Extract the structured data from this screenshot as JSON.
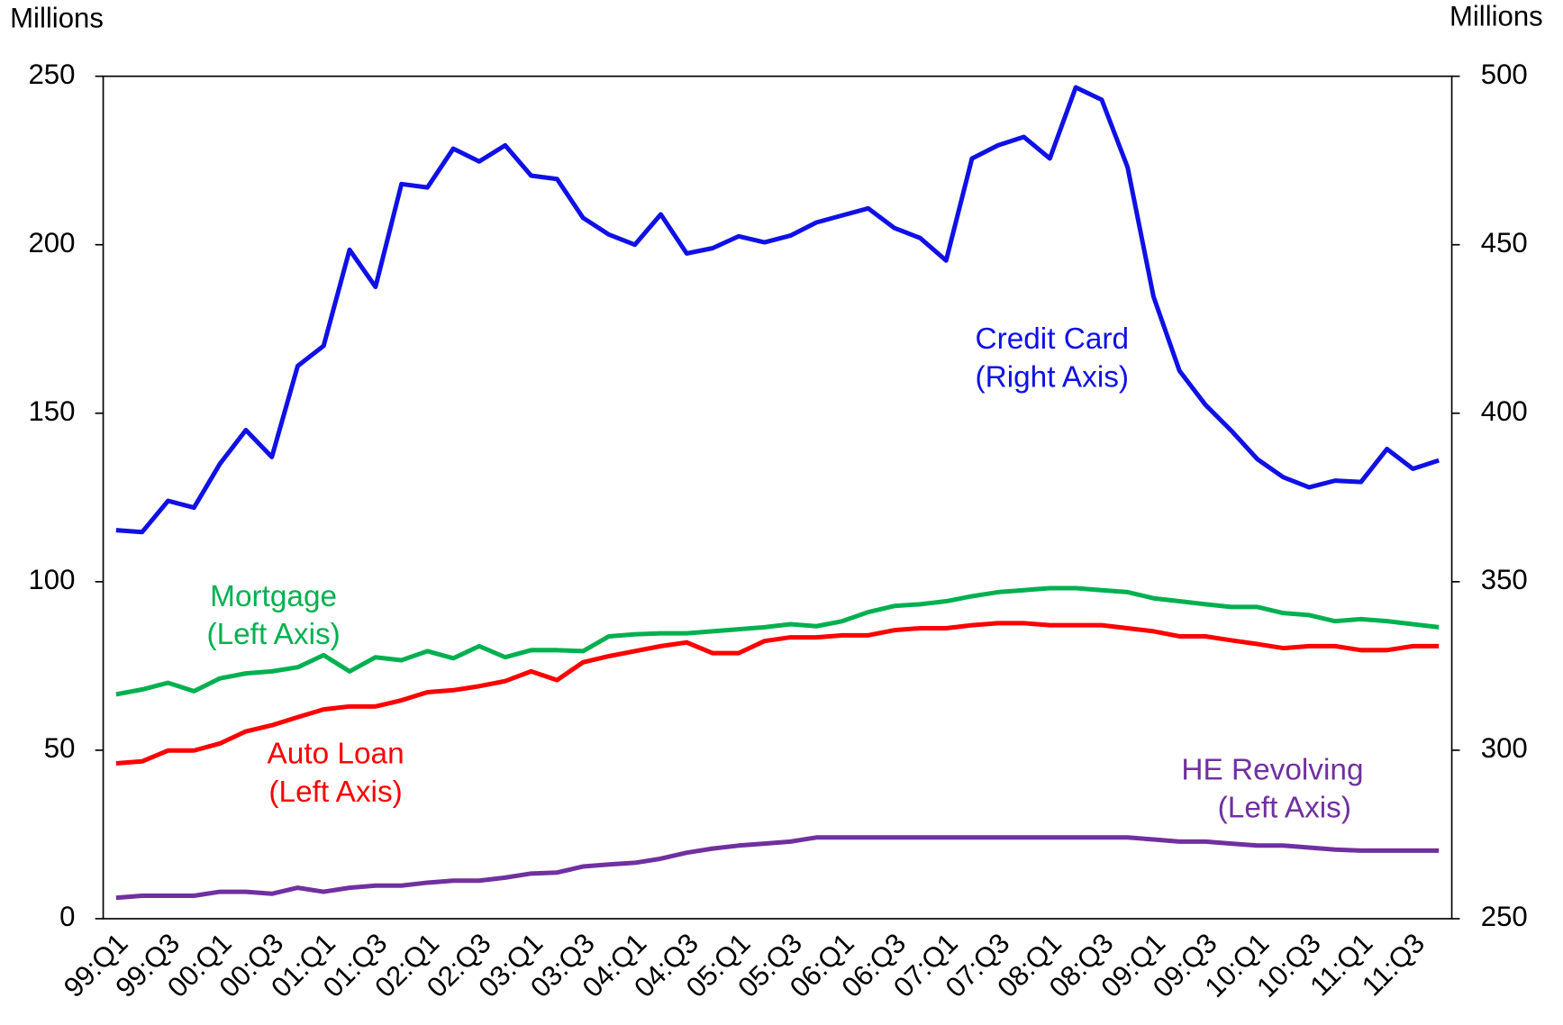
{
  "chart_data": {
    "type": "line",
    "y_label": "Millions",
    "y2_label": "Millions",
    "categories": [
      "99:Q1",
      null,
      "99:Q3",
      null,
      "00:Q1",
      null,
      "00:Q3",
      null,
      "01:Q1",
      null,
      "01:Q3",
      null,
      "02:Q1",
      null,
      "02:Q3",
      null,
      "03:Q1",
      null,
      "03:Q3",
      null,
      "04:Q1",
      null,
      "04:Q3",
      null,
      "05:Q1",
      null,
      "05:Q3",
      null,
      "06:Q1",
      null,
      "06:Q3",
      null,
      "07:Q1",
      null,
      "07:Q3",
      null,
      "08:Q1",
      null,
      "08:Q3",
      null,
      "09:Q1",
      null,
      "09:Q3",
      null,
      "10:Q1",
      null,
      "10:Q3",
      null,
      "11:Q1",
      null,
      "11:Q3",
      null
    ],
    "ylim": [
      0,
      250
    ],
    "yticks": [
      0,
      50,
      100,
      150,
      200,
      250
    ],
    "y2lim": [
      250,
      500
    ],
    "y2ticks": [
      250,
      300,
      350,
      400,
      450,
      500
    ],
    "series": [
      {
        "name": "Credit Card",
        "note": "(Right Axis)",
        "color": "#1010e6",
        "axis": "y2",
        "values": [
          365.3,
          364.7,
          374,
          372,
          385,
          395,
          387,
          414,
          420,
          448.5,
          437.5,
          468,
          467,
          478.5,
          474.7,
          479.5,
          470.5,
          469.5,
          458,
          453,
          450,
          459,
          447.4,
          449,
          452.5,
          450.7,
          452.7,
          456.6,
          458.7,
          460.8,
          455,
          452,
          445.3,
          475.6,
          479.5,
          482,
          475.6,
          496.7,
          493,
          473,
          434.6,
          412.6,
          402.5,
          394.8,
          386.4,
          381,
          378,
          380,
          379.6,
          389.4,
          383.5,
          386
        ]
      },
      {
        "name": "Mortgage",
        "note": "(Left Axis)",
        "color": "#00b050",
        "values": [
          66.6,
          68,
          70,
          67.5,
          71.3,
          72.8,
          73.4,
          74.6,
          78.2,
          73.4,
          77.6,
          76.7,
          79.4,
          77.3,
          80.9,
          77.6,
          79.7,
          79.7,
          79.4,
          83.8,
          84.4,
          84.7,
          84.7,
          85.3,
          85.9,
          86.5,
          87.4,
          86.8,
          88.3,
          91,
          92.8,
          93.3,
          94.2,
          95.7,
          96.9,
          97.5,
          98.1,
          98.1,
          97.5,
          96.9,
          95.1,
          94.2,
          93.3,
          92.5,
          92.5,
          90.7,
          90.1,
          88.3,
          88.9,
          88.3,
          87.4,
          86.5
        ]
      },
      {
        "name": "Auto Loan",
        "note": "(Left Axis)",
        "color": "#ff0000",
        "values": [
          46.1,
          46.7,
          49.9,
          49.9,
          52,
          55.6,
          57.4,
          59.8,
          62.1,
          63,
          63,
          64.8,
          67.2,
          67.8,
          69,
          70.5,
          73.4,
          70.8,
          76.1,
          77.9,
          79.4,
          80.9,
          82,
          78.8,
          78.8,
          82.4,
          83.5,
          83.5,
          84.1,
          84.1,
          85.6,
          86.2,
          86.2,
          87.1,
          87.7,
          87.7,
          87.1,
          87.1,
          87.1,
          86.2,
          85.3,
          83.8,
          83.8,
          82.6,
          81.5,
          80.3,
          80.9,
          80.9,
          79.7,
          79.7,
          80.9,
          80.9
        ]
      },
      {
        "name": "HE Revolving",
        "note": "(Left Axis)",
        "color": "#7030a0",
        "values": [
          6.2,
          6.8,
          6.8,
          6.8,
          8,
          8,
          7.4,
          9.2,
          8,
          9.2,
          9.8,
          9.8,
          10.7,
          11.3,
          11.3,
          12.2,
          13.4,
          13.7,
          15.5,
          16.1,
          16.6,
          17.8,
          19.6,
          20.8,
          21.7,
          22.3,
          22.9,
          24.1,
          24.1,
          24.1,
          24.1,
          24.1,
          24.1,
          24.1,
          24.1,
          24.1,
          24.1,
          24.1,
          24.1,
          24.1,
          23.5,
          22.9,
          22.9,
          22.3,
          21.7,
          21.7,
          21.1,
          20.5,
          20.2,
          20.2,
          20.2,
          20.2
        ]
      }
    ]
  }
}
